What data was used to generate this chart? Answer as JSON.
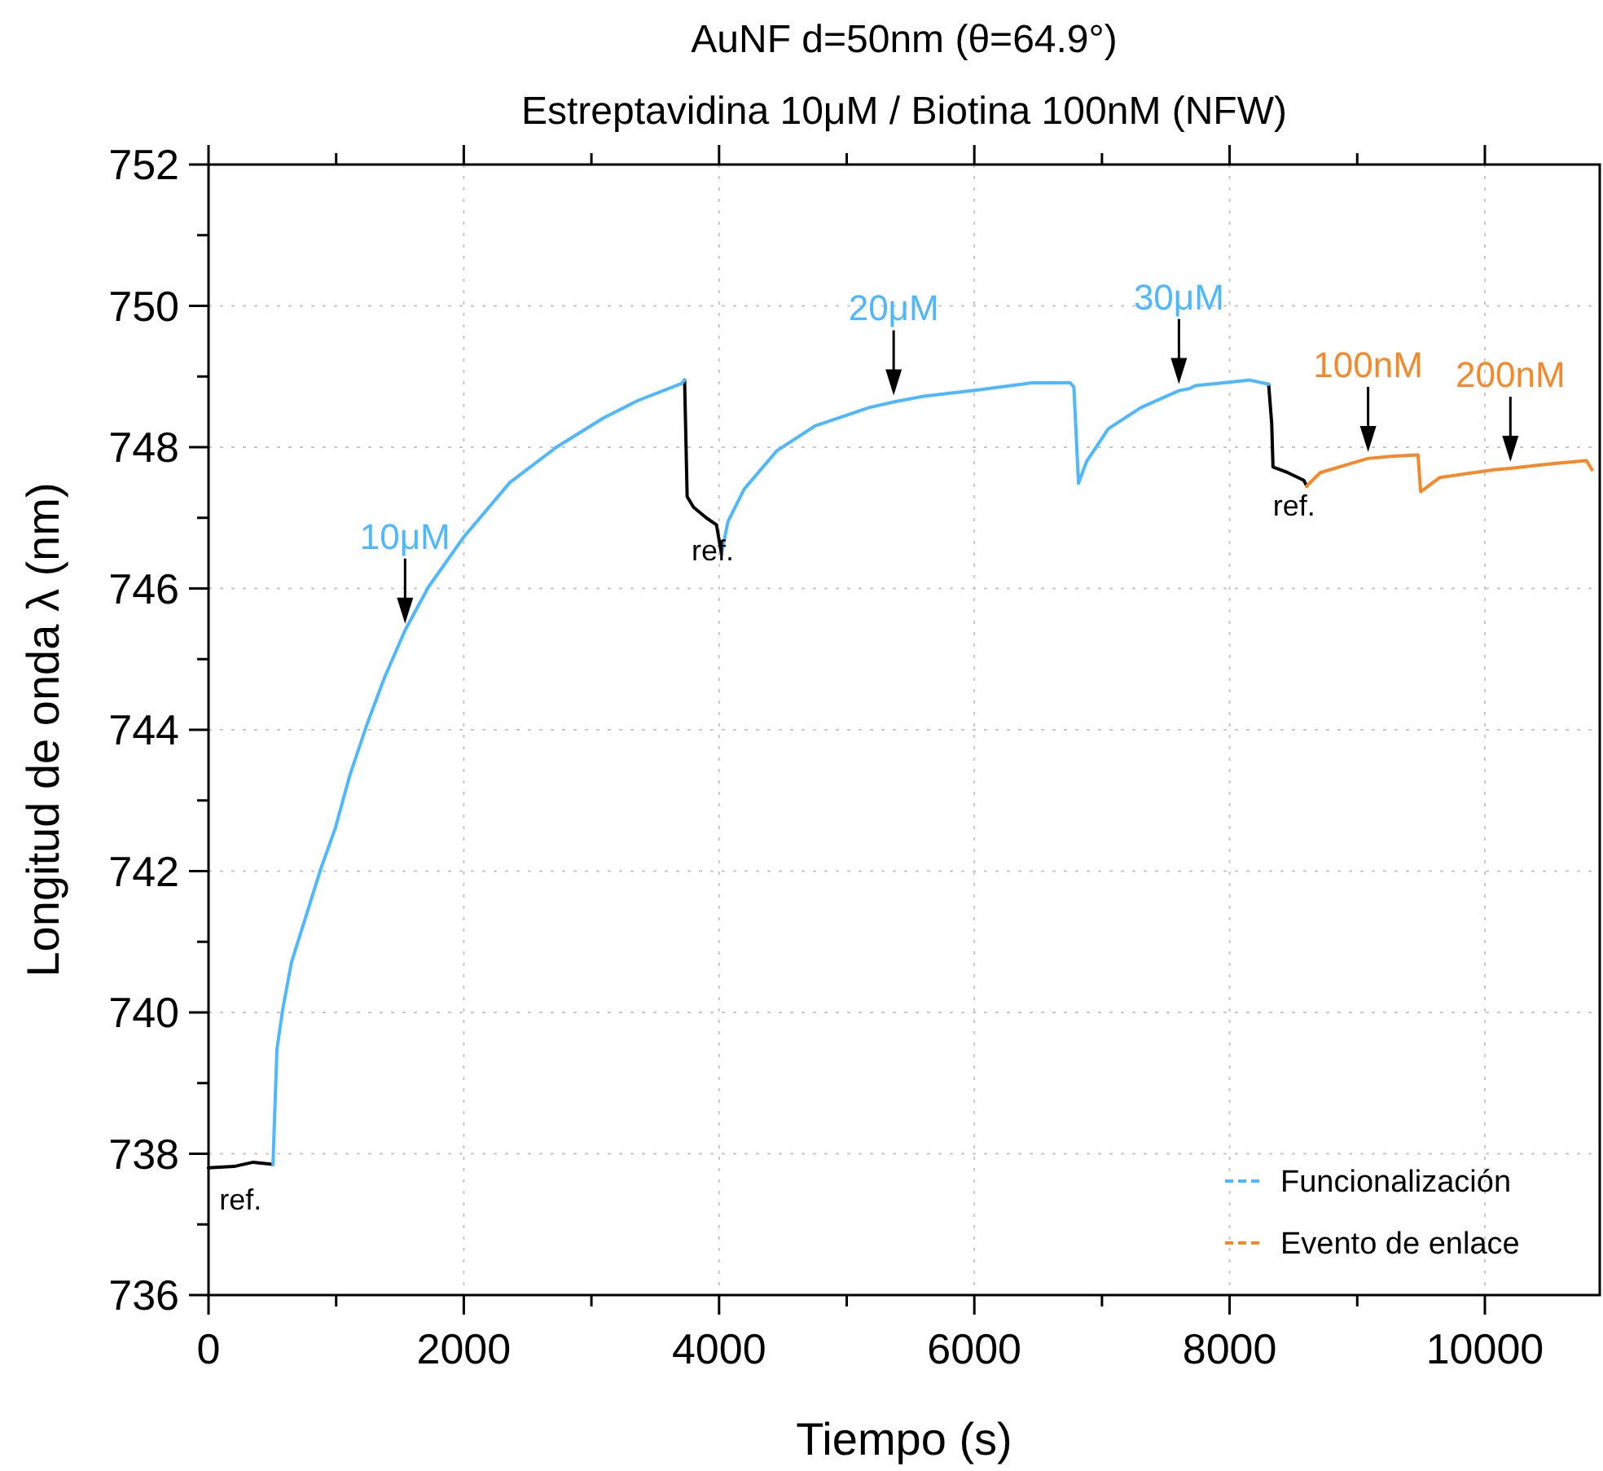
{
  "chart_data": {
    "type": "line",
    "title": "AuNF d=50nm (θ=64.9°)",
    "subtitle": "Estreptavidina 10μM / Biotina 100nM (NFW)",
    "xlabel": "Tiempo (s)",
    "ylabel": "Longitud de onda λ (nm)",
    "xlim": [
      0,
      10900
    ],
    "ylim": [
      736,
      752
    ],
    "xticks": [
      0,
      {
        "value": 1000,
        "label": null
      },
      2000,
      {
        "value": 3000,
        "label": null
      },
      4000,
      {
        "value": 5000,
        "label": null
      },
      6000,
      {
        "value": 7000,
        "label": null
      },
      8000,
      {
        "value": 9000,
        "label": null
      },
      10000
    ],
    "yticks": [
      736,
      {
        "value": 737,
        "label": null
      },
      738,
      {
        "value": 739,
        "label": null
      },
      740,
      {
        "value": 741,
        "label": null
      },
      742,
      {
        "value": 743,
        "label": null
      },
      744,
      {
        "value": 745,
        "label": null
      },
      746,
      {
        "value": 747,
        "label": null
      },
      748,
      {
        "value": 749,
        "label": null
      },
      750,
      {
        "value": 751,
        "label": null
      },
      752
    ],
    "grid": true,
    "legend": "bottom right",
    "marker": "none",
    "series": [
      {
        "color": "#000000",
        "x": [
          0,
          200,
          350,
          505,
          2000,
          3730,
          3750,
          3800,
          3900,
          3980,
          4019,
          6000,
          8306,
          8330,
          8340,
          8455,
          8582,
          8604
        ],
        "values": [
          737.8,
          737.82,
          737.88,
          737.85,
          null,
          748.95,
          747.3,
          747.15,
          747.0,
          746.9,
          746.49,
          null,
          748.89,
          748.33,
          747.72,
          747.64,
          747.53,
          747.45
        ]
      },
      {
        "name": "Funcionalización",
        "color": "#4db8ff",
        "x": [
          505,
          536,
          582,
          650,
          765,
          879,
          992,
          1106,
          1244,
          1379,
          1540,
          1723,
          1996,
          2361,
          2726,
          3091,
          3364,
          3706,
          3730,
          3850,
          4019,
          4070,
          4198,
          4453,
          4751,
          5176,
          5368,
          5603,
          6028,
          6454,
          6752,
          6780,
          6816,
          6880,
          7050,
          7305,
          7603,
          7688,
          7731,
          8157,
          8306
        ],
        "values": [
          737.85,
          739.48,
          740.05,
          740.71,
          741.37,
          742.03,
          742.6,
          743.35,
          744.09,
          744.74,
          745.41,
          746.02,
          746.72,
          747.5,
          748.0,
          748.41,
          748.66,
          748.9,
          748.95,
          null,
          746.49,
          746.95,
          747.41,
          747.95,
          748.3,
          748.56,
          748.64,
          748.72,
          748.81,
          748.91,
          748.91,
          748.85,
          747.49,
          747.8,
          748.26,
          748.56,
          748.8,
          748.83,
          748.87,
          748.95,
          748.89
        ]
      },
      {
        "name": "Evento de enlace",
        "color": "#f5892a",
        "x": [
          8604,
          8710,
          9008,
          9085,
          9263,
          9476,
          9497,
          9646,
          10072,
          10200,
          10498,
          10796,
          10839
        ],
        "values": [
          747.45,
          747.64,
          747.8,
          747.84,
          747.87,
          747.89,
          747.37,
          747.57,
          747.68,
          747.7,
          747.76,
          747.81,
          747.68
        ]
      }
    ],
    "annotations": [
      {
        "text": "10μM",
        "x": 1540,
        "y": 745.41
      },
      {
        "text": "20μM",
        "x": 5368,
        "y": 748.64
      },
      {
        "text": "30μM",
        "x": 7603,
        "y": 748.8
      },
      {
        "text": "100nM",
        "x": 9085,
        "y": 747.84
      },
      {
        "text": "200nM",
        "x": 10200,
        "y": 747.7
      },
      {
        "text": "ref.",
        "x": 200,
        "y": 737.82
      },
      {
        "text": "ref.",
        "x": 3900,
        "y": 747.0
      },
      {
        "text": "ref.",
        "x": 8455,
        "y": 747.64
      }
    ]
  }
}
